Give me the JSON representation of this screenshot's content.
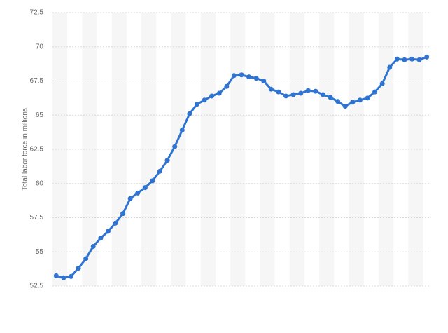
{
  "chart_data": {
    "type": "line",
    "y_label": "Total labor force in millions",
    "categories": [
      null,
      null,
      null,
      null,
      null,
      null,
      null,
      null,
      null,
      null,
      null,
      null,
      null,
      null,
      null,
      null,
      null,
      null,
      null,
      null,
      null,
      null,
      null,
      null,
      null,
      null,
      null,
      null,
      null,
      null,
      null,
      null,
      null,
      null,
      null,
      null,
      null,
      null,
      null,
      null,
      null,
      null,
      null,
      null,
      null,
      null,
      null,
      null,
      null,
      null,
      null
    ],
    "values": [
      53.25,
      53.1,
      53.2,
      53.8,
      54.5,
      55.4,
      56.0,
      56.5,
      57.1,
      57.8,
      58.9,
      59.3,
      59.7,
      60.2,
      60.9,
      61.7,
      62.7,
      63.9,
      65.1,
      65.8,
      66.1,
      66.4,
      66.6,
      67.1,
      67.9,
      67.95,
      67.8,
      67.7,
      67.5,
      66.9,
      66.7,
      66.4,
      66.5,
      66.6,
      66.8,
      66.75,
      66.5,
      66.3,
      66.0,
      65.65,
      65.95,
      66.1,
      66.25,
      66.7,
      67.3,
      68.5,
      69.1,
      69.05,
      69.1,
      69.05,
      69.25
    ],
    "color": "#2f74d0",
    "ylim": [
      52.5,
      72.5
    ],
    "yticks": [
      52.5,
      55,
      57.5,
      60,
      62.5,
      65,
      67.5,
      70,
      72.5
    ],
    "grid": true
  }
}
